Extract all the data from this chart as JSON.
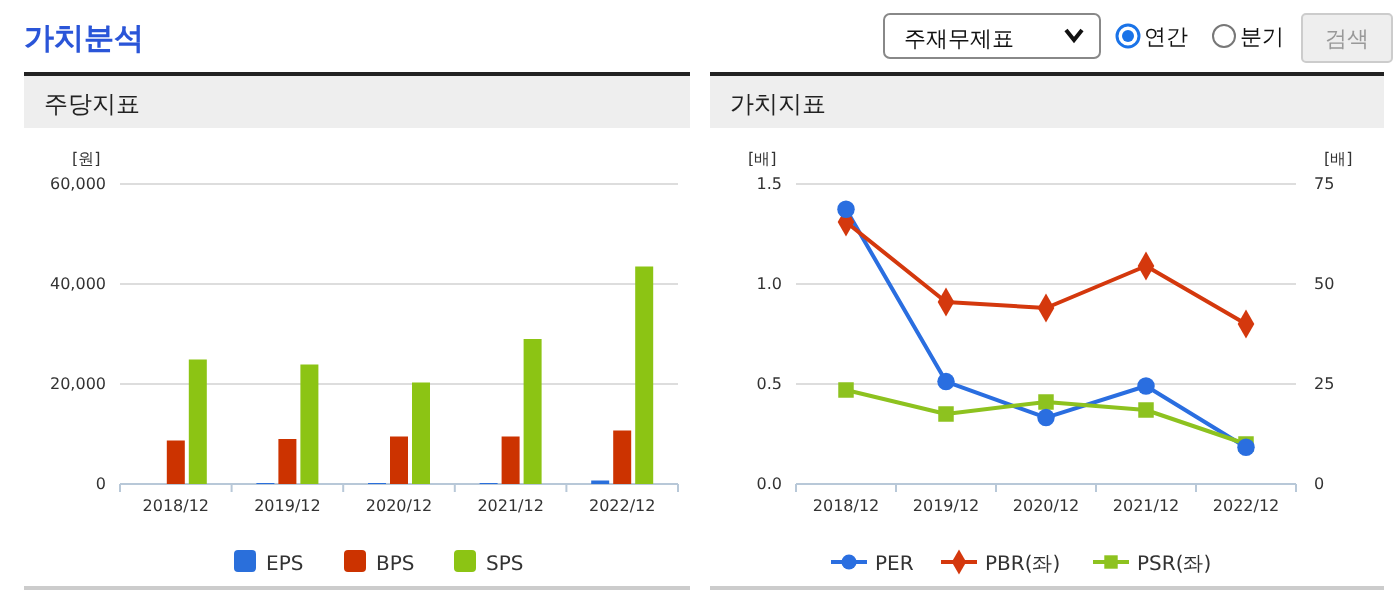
{
  "chart_data": [
    {
      "type": "other",
      "title": "가치분석",
      "annotations": [
        "주재무제표",
        "연간",
        "분기",
        "검색"
      ]
    },
    {
      "type": "bar",
      "title": "주당지표",
      "ylabel": "[원]",
      "categories": [
        "2018/12",
        "2019/12",
        "2020/12",
        "2021/12",
        "2022/12"
      ],
      "series": [
        {
          "name": "EPS",
          "color": "#2a6fdb",
          "values": [
            null,
            200,
            200,
            200,
            700
          ]
        },
        {
          "name": "BPS",
          "color": "#cc3300",
          "values": [
            8700,
            9000,
            9500,
            9500,
            10700
          ]
        },
        {
          "name": "SPS",
          "color": "#8cc414",
          "values": [
            24900,
            23900,
            20300,
            29000,
            43500
          ]
        }
      ],
      "ylim": [
        0,
        60000
      ],
      "yticks": [
        {
          "value": 0,
          "label": "0"
        },
        {
          "value": 20000,
          "label": "20,000"
        },
        {
          "value": 40000,
          "label": "40,000"
        },
        {
          "value": 60000,
          "label": "60,000"
        }
      ],
      "grid": "y",
      "legend": "bottom"
    },
    {
      "type": "line",
      "title": "가치지표",
      "ylabel": "[배]",
      "y2label": "[배]",
      "categories": [
        "2018/12",
        "2019/12",
        "2020/12",
        "2021/12",
        "2022/12"
      ],
      "series": [
        {
          "name": "PER",
          "color": "#2a6ee0",
          "axis": "y2",
          "marker": "circle",
          "values": [
            68.7,
            25.6,
            16.6,
            24.5,
            9.2
          ]
        },
        {
          "name": "PBR(좌)",
          "color": "#d4380d",
          "marker": "diamond",
          "values": [
            1.31,
            0.91,
            0.88,
            1.09,
            0.8
          ]
        },
        {
          "name": "PSR(좌)",
          "color": "#8dc21f",
          "marker": "square",
          "values": [
            0.47,
            0.35,
            0.41,
            0.37,
            0.2
          ]
        }
      ],
      "ylim": [
        0,
        1.5
      ],
      "yticks": [
        {
          "value": 0,
          "label": "0.0"
        },
        {
          "value": 0.5,
          "label": "0.5"
        },
        {
          "value": 1,
          "label": "1.0"
        },
        {
          "value": 1.5,
          "label": "1.5"
        }
      ],
      "y2lim": [
        0,
        75
      ],
      "y2ticks": [
        0,
        25,
        50,
        75
      ],
      "grid": "y",
      "legend": "bottom",
      "line_style": "solid"
    }
  ]
}
